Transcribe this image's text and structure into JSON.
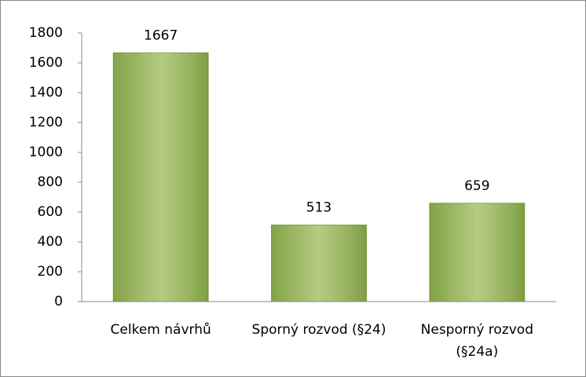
{
  "chart_data": {
    "type": "bar",
    "categories": [
      "Celkem návrhů",
      "Sporný rozvod (§24)",
      "Nesporný rozvod (§24a)"
    ],
    "values": [
      1667,
      513,
      659
    ],
    "color": "#9bbb59",
    "ylim": [
      0,
      1800
    ],
    "yticks": [
      0,
      200,
      400,
      600,
      800,
      1000,
      1200,
      1400,
      1600,
      1800
    ],
    "grid": false
  }
}
